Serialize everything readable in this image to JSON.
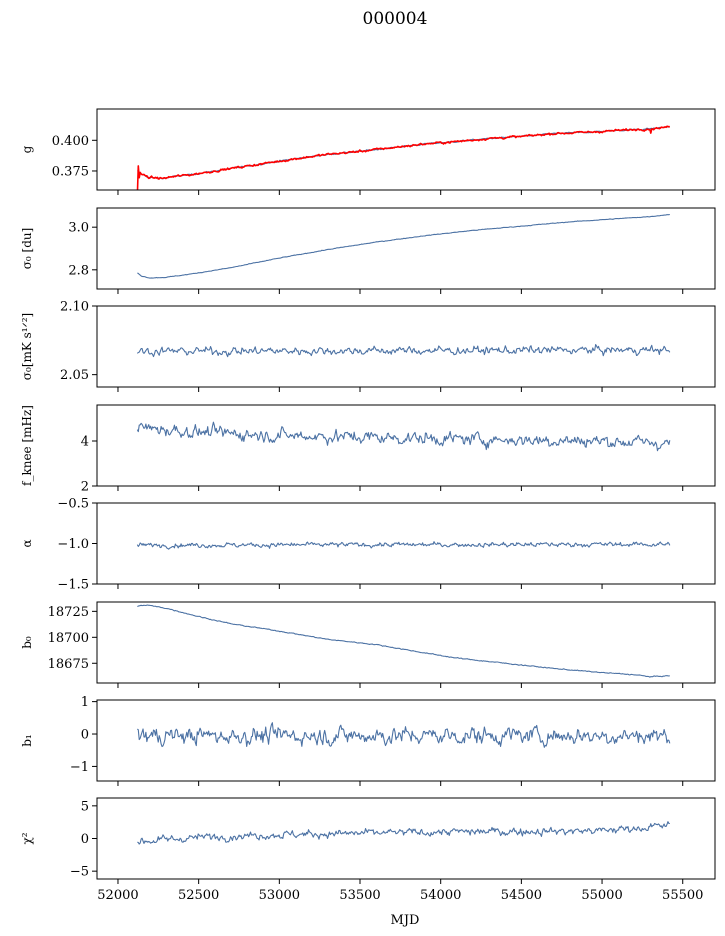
{
  "figure": {
    "title": "000004",
    "xlabel": "MJD",
    "x_ticks": [
      52000,
      52500,
      53000,
      53500,
      54000,
      54500,
      55000,
      55500
    ],
    "x_tick_labels": [
      "52000",
      "52500",
      "53000",
      "53500",
      "54000",
      "54500",
      "55000",
      "55500"
    ]
  },
  "chart_data": [
    {
      "id": "g",
      "type": "line",
      "ylabel": "g",
      "xlim": [
        51870,
        55700
      ],
      "ylim": [
        0.3595,
        0.4255
      ],
      "yticks": [
        0.375,
        0.4
      ],
      "ytick_labels": [
        "0.375",
        "0.400"
      ],
      "series": [
        {
          "color": "#4c72a4",
          "trend": [
            [
              52120,
              0.375
            ],
            [
              52150,
              0.372
            ],
            [
              52200,
              0.3695
            ],
            [
              52280,
              0.369
            ],
            [
              52350,
              0.3705
            ],
            [
              52450,
              0.372
            ],
            [
              52550,
              0.374
            ],
            [
              52700,
              0.377
            ],
            [
              52900,
              0.381
            ],
            [
              53100,
              0.385
            ],
            [
              53300,
              0.3885
            ],
            [
              53500,
              0.391
            ],
            [
              53700,
              0.394
            ],
            [
              53900,
              0.397
            ],
            [
              54100,
              0.399
            ],
            [
              54300,
              0.4015
            ],
            [
              54500,
              0.403
            ],
            [
              54700,
              0.4055
            ],
            [
              54900,
              0.4065
            ],
            [
              55100,
              0.408
            ],
            [
              55300,
              0.4095
            ],
            [
              55420,
              0.411
            ]
          ],
          "noise": 0.0008
        },
        {
          "color": "#ff0000",
          "trend": [
            [
              52120,
              0.375
            ],
            [
              52150,
              0.372
            ],
            [
              52200,
              0.3695
            ],
            [
              52280,
              0.369
            ],
            [
              52350,
              0.3705
            ],
            [
              52450,
              0.372
            ],
            [
              52550,
              0.374
            ],
            [
              52700,
              0.377
            ],
            [
              52900,
              0.381
            ],
            [
              53100,
              0.385
            ],
            [
              53300,
              0.3885
            ],
            [
              53500,
              0.391
            ],
            [
              53700,
              0.394
            ],
            [
              53900,
              0.397
            ],
            [
              54100,
              0.399
            ],
            [
              54300,
              0.4015
            ],
            [
              54500,
              0.403
            ],
            [
              54700,
              0.4055
            ],
            [
              54900,
              0.4065
            ],
            [
              55100,
              0.408
            ],
            [
              55300,
              0.4095
            ],
            [
              55420,
              0.411
            ]
          ],
          "noise": 0.0012
        }
      ]
    },
    {
      "id": "sigma0_du",
      "type": "line",
      "ylabel": "σ₀ [du]",
      "xlim": [
        51870,
        55700
      ],
      "ylim": [
        2.71,
        3.09
      ],
      "yticks": [
        2.8,
        3.0
      ],
      "ytick_labels": [
        "2.8",
        "3.0"
      ],
      "series": [
        {
          "color": "#4c72a4",
          "trend": [
            [
              52120,
              2.785
            ],
            [
              52150,
              2.77
            ],
            [
              52200,
              2.762
            ],
            [
              52300,
              2.765
            ],
            [
              52450,
              2.78
            ],
            [
              52700,
              2.81
            ],
            [
              53000,
              2.855
            ],
            [
              53300,
              2.895
            ],
            [
              53600,
              2.93
            ],
            [
              53900,
              2.96
            ],
            [
              54200,
              2.985
            ],
            [
              54500,
              3.005
            ],
            [
              54800,
              3.025
            ],
            [
              55100,
              3.04
            ],
            [
              55300,
              3.05
            ],
            [
              55420,
              3.06
            ]
          ],
          "noise": 0.002
        }
      ]
    },
    {
      "id": "sigma0_mK",
      "type": "line",
      "ylabel": "σ₀[mK s¹ᐟ²]",
      "xlim": [
        51870,
        55700
      ],
      "ylim": [
        2.041,
        2.1
      ],
      "yticks": [
        2.05,
        2.1
      ],
      "ytick_labels": [
        "2.05",
        "2.10"
      ],
      "series": [
        {
          "color": "#4c72a4",
          "trend": [
            [
              52120,
              2.067
            ],
            [
              55420,
              2.068
            ]
          ],
          "noise": 0.004
        }
      ]
    },
    {
      "id": "fknee",
      "type": "line",
      "ylabel": "f_knee [mHz]",
      "xlim": [
        51870,
        55700
      ],
      "ylim": [
        2.0,
        5.6
      ],
      "yticks": [
        2,
        4
      ],
      "ytick_labels": [
        "2",
        "4"
      ],
      "series": [
        {
          "color": "#4c72a4",
          "trend": [
            [
              52120,
              4.6
            ],
            [
              52500,
              4.4
            ],
            [
              53000,
              4.25
            ],
            [
              54000,
              4.1
            ],
            [
              55000,
              4.0
            ],
            [
              55420,
              3.9
            ]
          ],
          "noise": 0.38
        }
      ]
    },
    {
      "id": "alpha",
      "type": "line",
      "ylabel": "α",
      "xlim": [
        51870,
        55700
      ],
      "ylim": [
        -1.5,
        -0.5
      ],
      "yticks": [
        -1.5,
        -1.0,
        -0.5
      ],
      "ytick_labels": [
        "−1.5",
        "−1.0",
        "−0.5"
      ],
      "series": [
        {
          "color": "#4c72a4",
          "trend": [
            [
              52120,
              -1.02
            ],
            [
              55420,
              -1.01
            ]
          ],
          "noise": 0.04
        }
      ]
    },
    {
      "id": "b0",
      "type": "line",
      "ylabel": "b₀",
      "xlim": [
        51870,
        55700
      ],
      "ylim": [
        18656,
        18734
      ],
      "yticks": [
        18675,
        18700,
        18725
      ],
      "ytick_labels": [
        "18675",
        "18700",
        "18725"
      ],
      "series": [
        {
          "color": "#4c72a4",
          "trend": [
            [
              52120,
              18730
            ],
            [
              52180,
              18731
            ],
            [
              52300,
              18728
            ],
            [
              52500,
              18720
            ],
            [
              52700,
              18713
            ],
            [
              53000,
              18706
            ],
            [
              53300,
              18698
            ],
            [
              53600,
              18693
            ],
            [
              53900,
              18685
            ],
            [
              54100,
              18680
            ],
            [
              54400,
              18675
            ],
            [
              54700,
              18670
            ],
            [
              55000,
              18666
            ],
            [
              55200,
              18664
            ],
            [
              55300,
              18662
            ],
            [
              55420,
              18663
            ]
          ],
          "noise": 0.6
        }
      ]
    },
    {
      "id": "b1",
      "type": "line",
      "ylabel": "b₁",
      "xlim": [
        51870,
        55700
      ],
      "ylim": [
        -1.45,
        1.05
      ],
      "yticks": [
        -1,
        0,
        1
      ],
      "ytick_labels": [
        "−1",
        "0",
        "1"
      ],
      "series": [
        {
          "color": "#4c72a4",
          "trend": [
            [
              52120,
              -0.05
            ],
            [
              55420,
              -0.05
            ]
          ],
          "noise": 0.36
        }
      ]
    },
    {
      "id": "chi2",
      "type": "line",
      "ylabel": "χ²",
      "xlim": [
        51870,
        55700
      ],
      "ylim": [
        -6.2,
        6.2
      ],
      "yticks": [
        -5,
        0,
        5
      ],
      "ytick_labels": [
        "−5",
        "0",
        "5"
      ],
      "series": [
        {
          "color": "#4c72a4",
          "trend": [
            [
              52120,
              -0.5
            ],
            [
              52500,
              0.2
            ],
            [
              53000,
              0.6
            ],
            [
              54000,
              1.0
            ],
            [
              55000,
              1.2
            ],
            [
              55420,
              2.0
            ]
          ],
          "noise": 0.8
        }
      ]
    }
  ]
}
